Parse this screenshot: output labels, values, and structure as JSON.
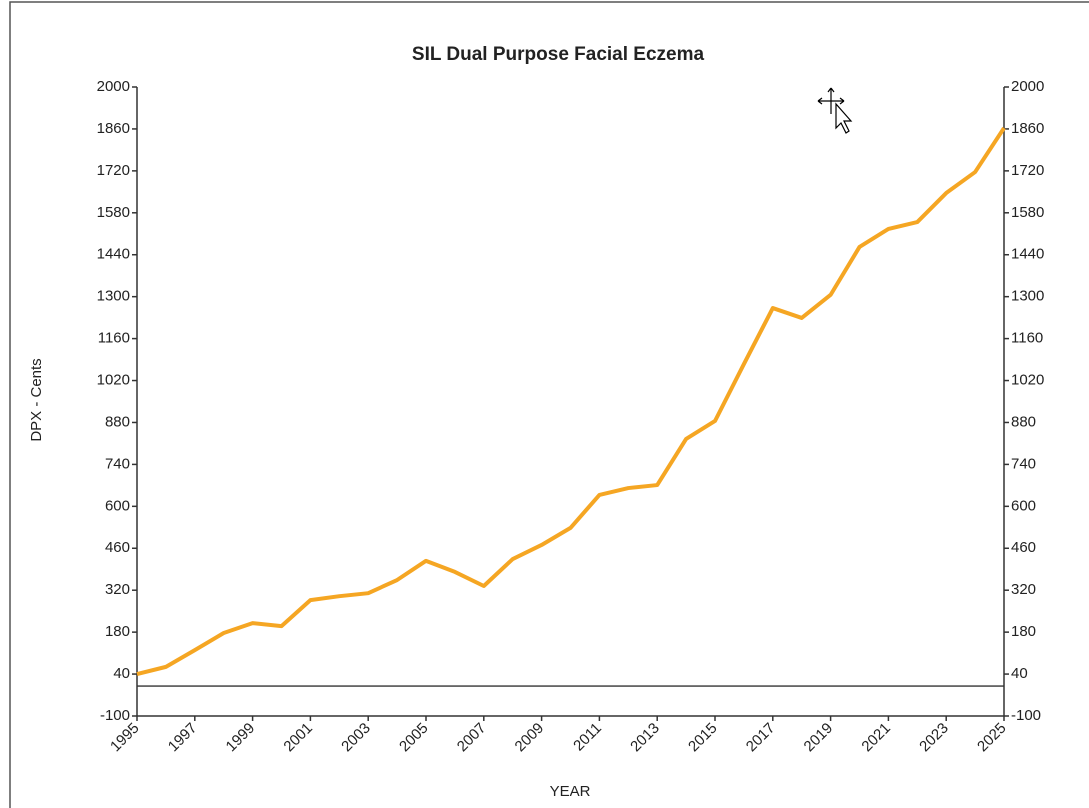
{
  "chart_data": {
    "type": "line",
    "title": "SIL Dual Purpose Facial Eczema",
    "x_label": "YEAR",
    "y_label": "DPX - Cents",
    "x": [
      1995,
      1996,
      1997,
      1998,
      1999,
      2000,
      2001,
      2002,
      2003,
      2004,
      2005,
      2006,
      2007,
      2008,
      2009,
      2010,
      2011,
      2012,
      2013,
      2014,
      2015,
      2016,
      2017,
      2018,
      2019,
      2020,
      2021,
      2022,
      2023,
      2024,
      2025
    ],
    "series": [
      {
        "color": "#f5a623",
        "values": [
          40,
          64,
          120,
          177,
          210,
          200,
          287,
          300,
          310,
          354,
          418,
          381,
          334,
          424,
          471,
          528,
          638,
          661,
          671,
          825,
          885,
          1075,
          1262,
          1229,
          1306,
          1466,
          1526,
          1549,
          1646,
          1716,
          1863
        ]
      }
    ],
    "xlim": [
      1995,
      2025
    ],
    "xticks": [
      1995,
      1997,
      1999,
      2001,
      2003,
      2005,
      2007,
      2009,
      2011,
      2013,
      2015,
      2017,
      2019,
      2021,
      2023,
      2025
    ],
    "ylim": [
      -100,
      2000
    ],
    "yticks": [
      -100,
      40,
      180,
      320,
      460,
      600,
      740,
      880,
      1020,
      1160,
      1300,
      1440,
      1580,
      1720,
      1860,
      2000
    ],
    "y2lim": [
      -100,
      2000
    ],
    "y2ticks": [
      -100,
      40,
      180,
      320,
      460,
      600,
      740,
      880,
      1020,
      1160,
      1300,
      1440,
      1580,
      1720,
      1860,
      2000
    ]
  }
}
